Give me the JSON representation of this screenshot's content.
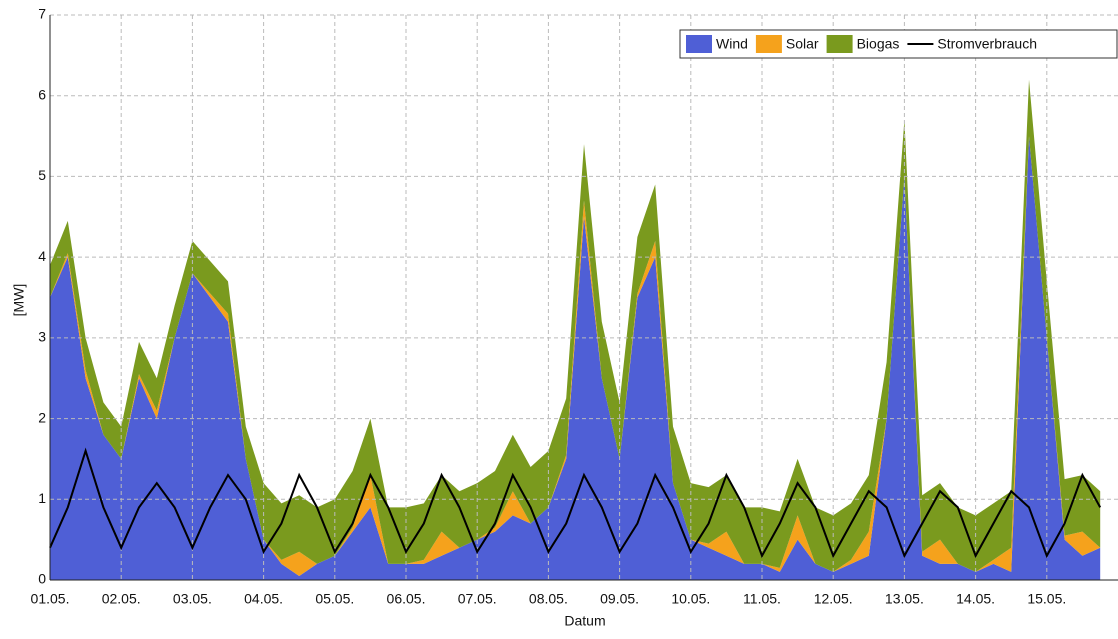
{
  "chart_data": {
    "type": "stacked_area",
    "ylabel": "[MW]",
    "xlabel": "Datum",
    "x": [
      0,
      0.25,
      0.5,
      0.75,
      1,
      1.25,
      1.5,
      1.75,
      2,
      2.25,
      2.5,
      2.75,
      3,
      3.25,
      3.5,
      3.75,
      4,
      4.25,
      4.5,
      4.75,
      5,
      5.25,
      5.5,
      5.75,
      6,
      6.25,
      6.5,
      6.75,
      7,
      7.25,
      7.5,
      7.75,
      8,
      8.25,
      8.5,
      8.75,
      9,
      9.25,
      9.5,
      9.75,
      10,
      10.25,
      10.5,
      10.75,
      11,
      11.25,
      11.5,
      11.75,
      12,
      12.25,
      12.5,
      12.75,
      13,
      13.25,
      13.5,
      13.75,
      14,
      14.25,
      14.5,
      14.75
    ],
    "series": [
      {
        "name": "Wind",
        "color": "#4f5fd6",
        "values": [
          3.5,
          4.0,
          2.5,
          1.8,
          1.5,
          2.5,
          2.0,
          3.0,
          3.8,
          3.5,
          3.2,
          1.5,
          0.5,
          0.2,
          0.05,
          0.2,
          0.3,
          0.6,
          0.9,
          0.2,
          0.2,
          0.2,
          0.3,
          0.4,
          0.5,
          0.6,
          0.8,
          0.7,
          0.9,
          1.5,
          4.5,
          2.5,
          1.5,
          3.5,
          4.0,
          1.2,
          0.5,
          0.4,
          0.3,
          0.2,
          0.2,
          0.1,
          0.5,
          0.2,
          0.1,
          0.2,
          0.3,
          2.0,
          5.0,
          0.3,
          0.2,
          0.2,
          0.1,
          0.2,
          0.1,
          5.5,
          3.0,
          0.5,
          0.3,
          0.4
        ]
      },
      {
        "name": "Solar",
        "color": "#f5a21c",
        "values": [
          0,
          0.05,
          0.1,
          0,
          0,
          0.05,
          0.1,
          0,
          0,
          0.05,
          0.1,
          0,
          0,
          0.05,
          0.3,
          0,
          0,
          0.05,
          0.4,
          0,
          0,
          0.05,
          0.3,
          0,
          0,
          0.05,
          0.3,
          0,
          0,
          0.05,
          0.2,
          0,
          0,
          0.05,
          0.2,
          0,
          0,
          0.05,
          0.3,
          0,
          0,
          0.05,
          0.3,
          0,
          0,
          0.05,
          0.3,
          0,
          0,
          0.05,
          0.3,
          0,
          0,
          0.05,
          0.3,
          0,
          0,
          0.05,
          0.3,
          0
        ]
      },
      {
        "name": "Biogas",
        "color": "#7a9a1e",
        "values": [
          0.4,
          0.4,
          0.4,
          0.4,
          0.4,
          0.4,
          0.4,
          0.4,
          0.4,
          0.4,
          0.4,
          0.4,
          0.7,
          0.7,
          0.7,
          0.7,
          0.7,
          0.7,
          0.7,
          0.7,
          0.7,
          0.7,
          0.7,
          0.7,
          0.7,
          0.7,
          0.7,
          0.7,
          0.7,
          0.7,
          0.7,
          0.7,
          0.7,
          0.7,
          0.7,
          0.7,
          0.7,
          0.7,
          0.7,
          0.7,
          0.7,
          0.7,
          0.7,
          0.7,
          0.7,
          0.7,
          0.7,
          0.7,
          0.7,
          0.7,
          0.7,
          0.7,
          0.7,
          0.7,
          0.7,
          0.7,
          0.7,
          0.7,
          0.7,
          0.7
        ]
      },
      {
        "name": "Stromverbrauch",
        "color": "#000000",
        "line": true,
        "values": [
          0.4,
          0.9,
          1.6,
          0.9,
          0.4,
          0.9,
          1.2,
          0.9,
          0.4,
          0.9,
          1.3,
          1.0,
          0.35,
          0.7,
          1.3,
          0.9,
          0.35,
          0.7,
          1.3,
          0.9,
          0.35,
          0.7,
          1.3,
          0.9,
          0.35,
          0.7,
          1.3,
          0.9,
          0.35,
          0.7,
          1.3,
          0.9,
          0.35,
          0.7,
          1.3,
          0.9,
          0.35,
          0.7,
          1.3,
          0.9,
          0.3,
          0.7,
          1.2,
          0.9,
          0.3,
          0.7,
          1.1,
          0.9,
          0.3,
          0.7,
          1.1,
          0.9,
          0.3,
          0.7,
          1.1,
          0.9,
          0.3,
          0.7,
          1.3,
          0.9
        ]
      }
    ],
    "xlim": [
      0,
      15
    ],
    "xticks": [
      {
        "value": 0,
        "label": "01.05."
      },
      {
        "value": 1,
        "label": "02.05."
      },
      {
        "value": 2,
        "label": "03.05."
      },
      {
        "value": 3,
        "label": "04.05."
      },
      {
        "value": 4,
        "label": "05.05."
      },
      {
        "value": 5,
        "label": "06.05."
      },
      {
        "value": 6,
        "label": "07.05."
      },
      {
        "value": 7,
        "label": "08.05."
      },
      {
        "value": 8,
        "label": "09.05."
      },
      {
        "value": 9,
        "label": "10.05."
      },
      {
        "value": 10,
        "label": "11.05."
      },
      {
        "value": 11,
        "label": "12.05."
      },
      {
        "value": 12,
        "label": "13.05."
      },
      {
        "value": 13,
        "label": "14.05."
      },
      {
        "value": 14,
        "label": "15.05."
      }
    ],
    "ylim": [
      0,
      7
    ],
    "yticks": [
      0,
      1,
      2,
      3,
      4,
      5,
      6,
      7
    ],
    "grid": true
  }
}
